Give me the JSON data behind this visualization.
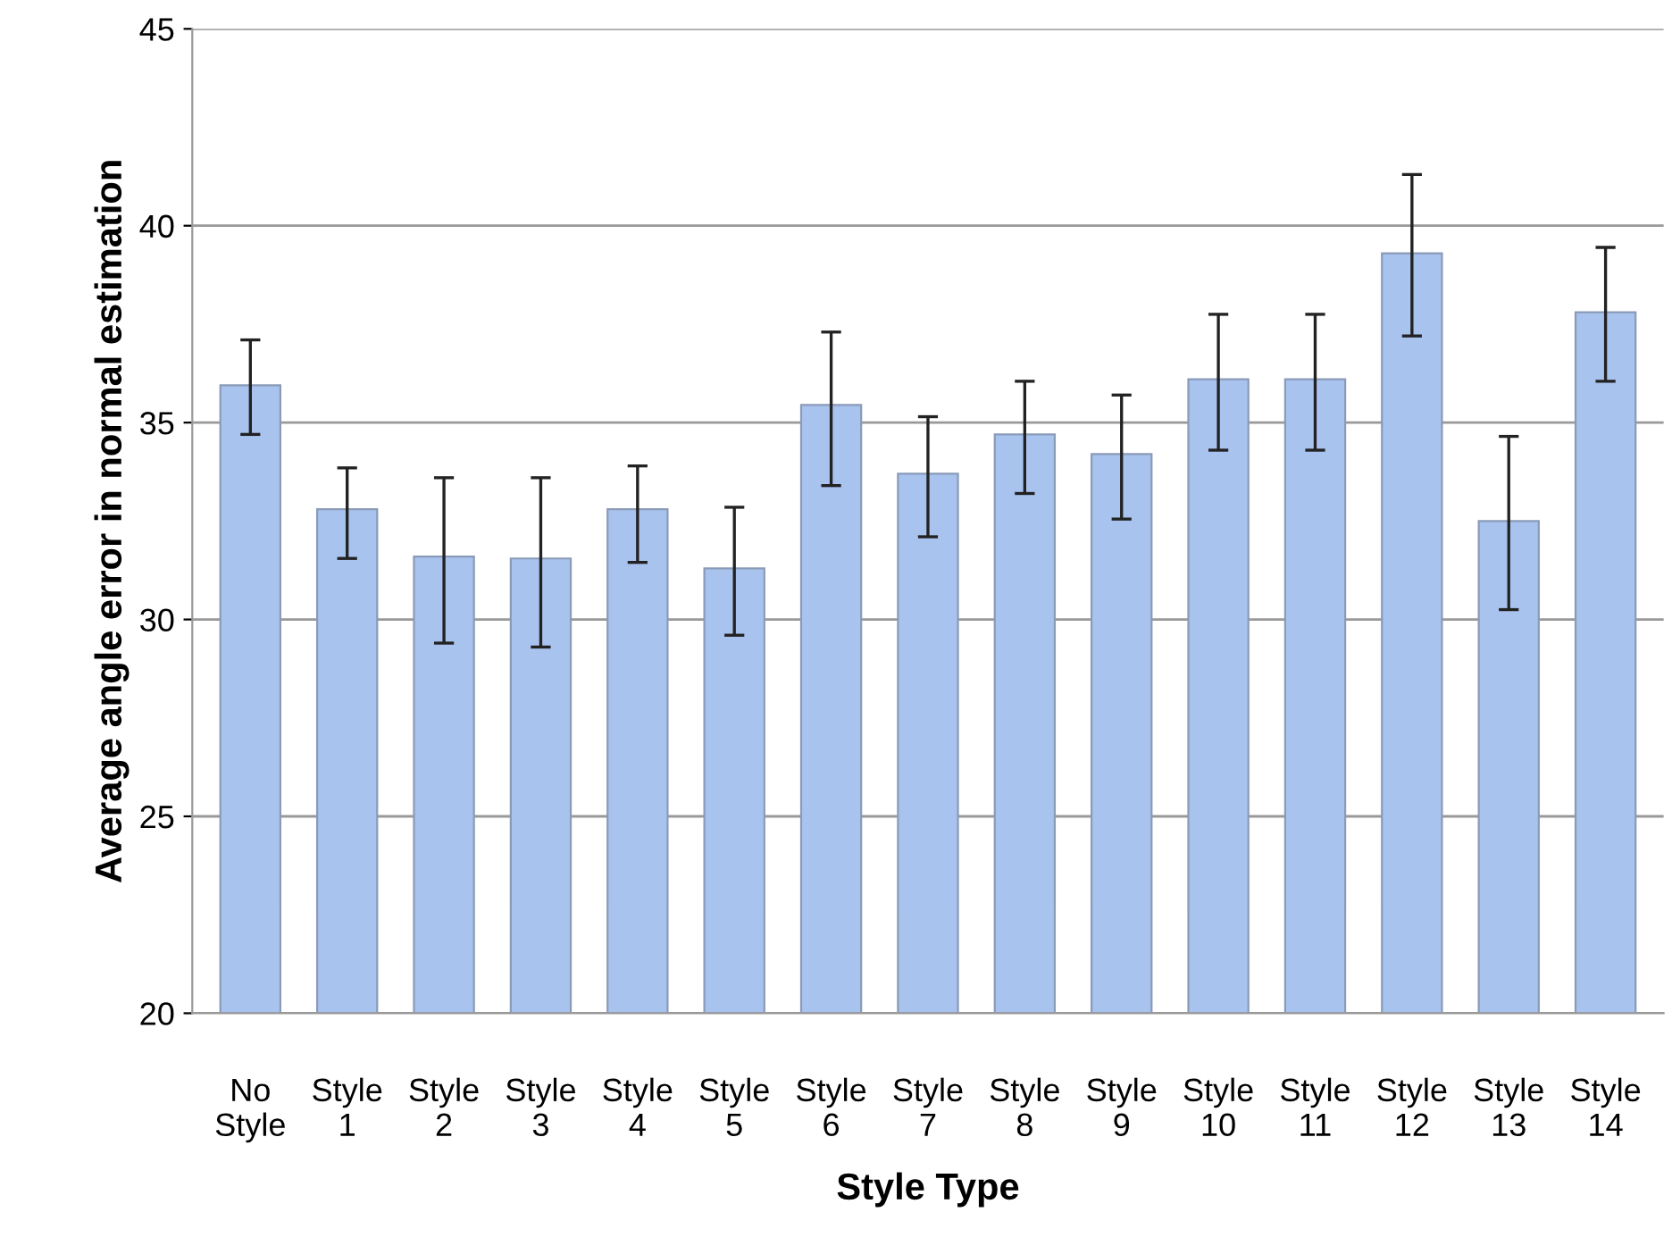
{
  "chart_data": {
    "type": "bar",
    "xlabel": "Style Type",
    "ylabel": "Average angle error in normal estimation",
    "categories": [
      "No\nStyle",
      "Style\n1",
      "Style\n2",
      "Style\n3",
      "Style\n4",
      "Style\n5",
      "Style\n6",
      "Style\n7",
      "Style\n8",
      "Style\n9",
      "Style\n10",
      "Style\n11",
      "Style\n12",
      "Style\n13",
      "Style\n14"
    ],
    "values": [
      35.95,
      32.8,
      31.6,
      31.55,
      32.8,
      31.3,
      35.45,
      33.7,
      34.7,
      34.2,
      36.1,
      36.1,
      39.3,
      32.5,
      37.8
    ],
    "errors": [
      [
        34.7,
        37.1
      ],
      [
        31.55,
        33.85
      ],
      [
        29.4,
        33.6
      ],
      [
        29.3,
        33.6
      ],
      [
        31.45,
        33.9
      ],
      [
        29.6,
        32.85
      ],
      [
        33.4,
        37.3
      ],
      [
        32.1,
        35.15
      ],
      [
        33.2,
        36.05
      ],
      [
        32.55,
        35.7
      ],
      [
        34.3,
        37.75
      ],
      [
        34.3,
        37.75
      ],
      [
        37.2,
        41.3
      ],
      [
        30.25,
        34.65
      ],
      [
        36.05,
        39.45
      ]
    ],
    "color": "#a9c3ef",
    "ylim": [
      20,
      45
    ],
    "yticks": [
      20,
      25,
      30,
      35,
      40,
      45
    ],
    "grid": "y",
    "legend": false
  }
}
